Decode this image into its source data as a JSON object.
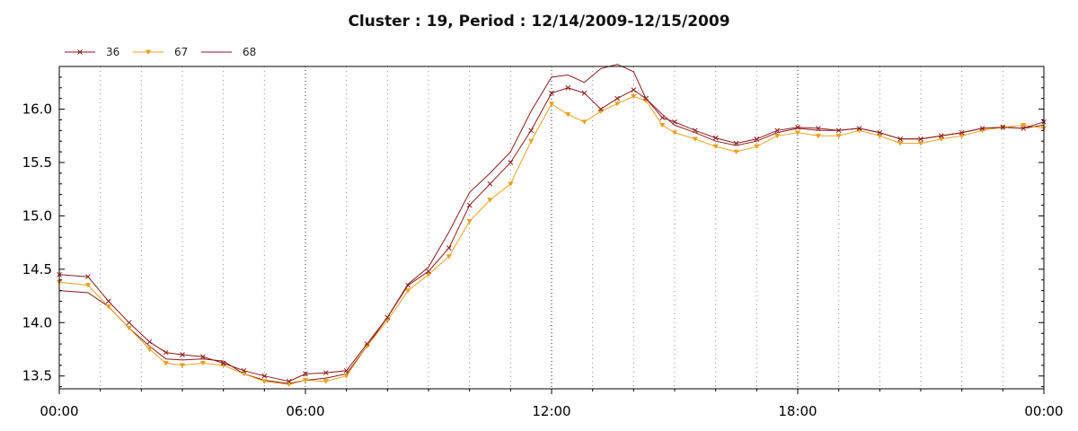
{
  "chart_data": {
    "type": "line",
    "title": "Cluster : 19, Period : 12/14/2009-12/15/2009",
    "xlabel": "",
    "ylabel": "",
    "xlim_hours": [
      0,
      24
    ],
    "ylim": [
      13.38,
      16.4
    ],
    "x_tick_labels": [
      {
        "hour": 0,
        "label": "00:00"
      },
      {
        "hour": 6,
        "label": "06:00"
      },
      {
        "hour": 12,
        "label": "12:00"
      },
      {
        "hour": 18,
        "label": "18:00"
      },
      {
        "hour": 24,
        "label": "00:00"
      }
    ],
    "y_ticks": [
      13.5,
      14.0,
      14.5,
      15.0,
      15.5,
      16.0
    ],
    "y_tick_labels": [
      "13.5",
      "14.0",
      "14.5",
      "15.0",
      "15.5",
      "16.0"
    ],
    "grid": "vertical-dotted",
    "legend_position": "top-left",
    "series": [
      {
        "name": "36",
        "color": "#8b1a1a",
        "marker": "x",
        "hours": [
          0,
          0.7,
          1.2,
          1.7,
          2.2,
          2.6,
          3.0,
          3.5,
          4.0,
          4.5,
          5.0,
          5.6,
          6.0,
          6.5,
          7.0,
          7.5,
          8.0,
          8.5,
          9.0,
          9.5,
          10.0,
          10.5,
          11.0,
          11.5,
          12.0,
          12.4,
          12.8,
          13.2,
          13.6,
          14.0,
          14.3,
          14.7,
          15.0,
          15.5,
          16.0,
          16.5,
          17.0,
          17.5,
          18.0,
          18.5,
          19.0,
          19.5,
          20.0,
          20.5,
          21.0,
          21.5,
          22.0,
          22.5,
          23.0,
          23.5,
          24.0
        ],
        "values": [
          14.45,
          14.43,
          14.2,
          14.0,
          13.82,
          13.72,
          13.7,
          13.68,
          13.62,
          13.55,
          13.5,
          13.45,
          13.52,
          13.53,
          13.55,
          13.8,
          14.05,
          14.35,
          14.48,
          14.7,
          15.1,
          15.3,
          15.5,
          15.8,
          16.15,
          16.2,
          16.15,
          16.0,
          16.1,
          16.18,
          16.1,
          15.92,
          15.88,
          15.8,
          15.73,
          15.68,
          15.72,
          15.8,
          15.83,
          15.82,
          15.8,
          15.82,
          15.78,
          15.72,
          15.72,
          15.75,
          15.78,
          15.82,
          15.83,
          15.82,
          15.88
        ]
      },
      {
        "name": "67",
        "color": "#e8a020",
        "marker": "triangle-down",
        "hours": [
          0,
          0.7,
          1.2,
          1.7,
          2.2,
          2.6,
          3.0,
          3.5,
          4.0,
          4.5,
          5.0,
          5.6,
          6.0,
          6.5,
          7.0,
          7.5,
          8.0,
          8.5,
          9.0,
          9.5,
          10.0,
          10.5,
          11.0,
          11.5,
          12.0,
          12.4,
          12.8,
          13.2,
          13.6,
          14.0,
          14.3,
          14.7,
          15.0,
          15.5,
          16.0,
          16.5,
          17.0,
          17.5,
          18.0,
          18.5,
          19.0,
          19.5,
          20.0,
          20.5,
          21.0,
          21.5,
          22.0,
          22.5,
          23.0,
          23.5,
          24.0
        ],
        "values": [
          14.38,
          14.35,
          14.15,
          13.95,
          13.75,
          13.62,
          13.6,
          13.62,
          13.6,
          13.52,
          13.45,
          13.42,
          13.46,
          13.45,
          13.5,
          13.78,
          14.02,
          14.3,
          14.45,
          14.62,
          14.95,
          15.15,
          15.3,
          15.7,
          16.05,
          15.95,
          15.88,
          15.98,
          16.05,
          16.12,
          16.08,
          15.85,
          15.78,
          15.72,
          15.65,
          15.6,
          15.65,
          15.75,
          15.78,
          15.75,
          15.75,
          15.8,
          15.75,
          15.68,
          15.68,
          15.72,
          15.75,
          15.8,
          15.83,
          15.85,
          15.82
        ]
      },
      {
        "name": "68",
        "color": "#8b1a1a",
        "marker": "none",
        "hours": [
          0,
          0.7,
          1.2,
          1.7,
          2.2,
          2.6,
          3.0,
          3.5,
          4.0,
          4.5,
          5.0,
          5.6,
          6.0,
          6.5,
          7.0,
          7.5,
          8.0,
          8.5,
          9.0,
          9.5,
          10.0,
          10.5,
          11.0,
          11.5,
          12.0,
          12.4,
          12.8,
          13.2,
          13.6,
          14.0,
          14.3,
          14.7,
          15.0,
          15.5,
          16.0,
          16.5,
          17.0,
          17.5,
          18.0,
          18.5,
          19.0,
          19.5,
          20.0,
          20.5,
          21.0,
          21.5,
          22.0,
          22.5,
          23.0,
          23.5,
          24.0
        ],
        "values": [
          14.3,
          14.28,
          14.15,
          13.95,
          13.78,
          13.66,
          13.65,
          13.66,
          13.64,
          13.52,
          13.46,
          13.43,
          13.46,
          13.48,
          13.52,
          13.78,
          14.05,
          14.36,
          14.52,
          14.85,
          15.22,
          15.4,
          15.6,
          15.98,
          16.3,
          16.32,
          16.25,
          16.38,
          16.42,
          16.35,
          16.1,
          15.95,
          15.85,
          15.78,
          15.7,
          15.66,
          15.7,
          15.78,
          15.82,
          15.8,
          15.8,
          15.82,
          15.78,
          15.72,
          15.72,
          15.75,
          15.78,
          15.82,
          15.83,
          15.82,
          15.85
        ]
      }
    ]
  }
}
